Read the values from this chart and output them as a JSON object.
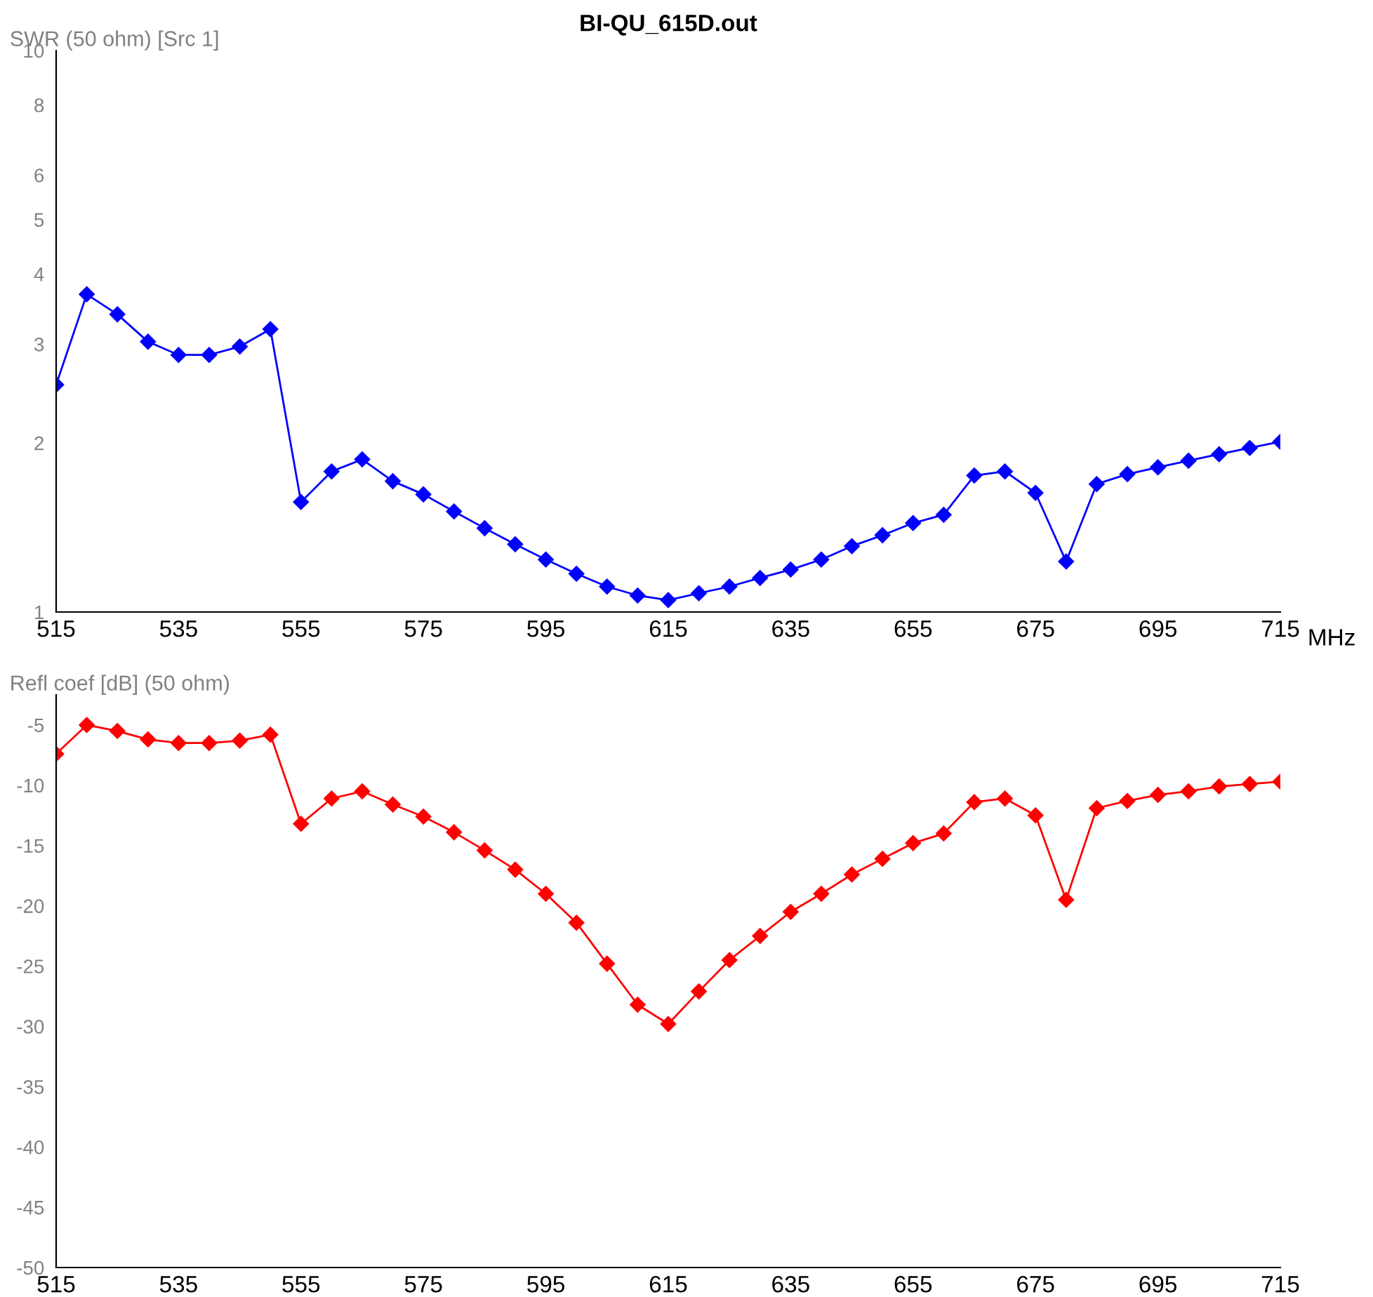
{
  "chart_data": [
    {
      "type": "line",
      "title": "BI-QU_615D.out",
      "ylabel": "SWR (50 ohm) [Src 1]",
      "xlabel": "MHz",
      "log": "y",
      "x": [
        515,
        520,
        525,
        530,
        535,
        540,
        545,
        550,
        555,
        560,
        565,
        570,
        575,
        580,
        585,
        590,
        595,
        600,
        605,
        610,
        615,
        620,
        625,
        630,
        635,
        640,
        645,
        650,
        655,
        660,
        665,
        670,
        675,
        680,
        685,
        690,
        695,
        700,
        705,
        710,
        715
      ],
      "series": [
        {
          "color": "#0000ff",
          "values": [
            2.54,
            3.68,
            3.39,
            3.03,
            2.87,
            2.87,
            2.97,
            3.19,
            1.57,
            1.78,
            1.87,
            1.71,
            1.62,
            1.51,
            1.41,
            1.32,
            1.24,
            1.17,
            1.11,
            1.07,
            1.05,
            1.08,
            1.11,
            1.15,
            1.19,
            1.24,
            1.31,
            1.37,
            1.44,
            1.49,
            1.75,
            1.78,
            1.63,
            1.23,
            1.69,
            1.76,
            1.81,
            1.86,
            1.91,
            1.96,
            2.01
          ]
        }
      ],
      "xlim": [
        515,
        715
      ],
      "xticks": [
        515,
        535,
        555,
        575,
        595,
        615,
        635,
        655,
        675,
        695,
        715
      ],
      "ylim": [
        1,
        10
      ],
      "yticks": [
        1,
        2,
        3,
        4,
        5,
        6,
        8,
        10
      ],
      "marker": "diamond",
      "line_style": "solid",
      "grid": false,
      "legend": false
    },
    {
      "type": "line",
      "ylabel": "Refl coef [dB] (50 ohm)",
      "x": [
        515,
        520,
        525,
        530,
        535,
        540,
        545,
        550,
        555,
        560,
        565,
        570,
        575,
        580,
        585,
        590,
        595,
        600,
        605,
        610,
        615,
        620,
        625,
        630,
        635,
        640,
        645,
        650,
        655,
        660,
        665,
        670,
        675,
        680,
        685,
        690,
        695,
        700,
        705,
        710,
        715
      ],
      "series": [
        {
          "color": "#ff0000",
          "values": [
            -7.4,
            -5.0,
            -5.5,
            -6.2,
            -6.5,
            -6.5,
            -6.3,
            -5.8,
            -13.2,
            -11.1,
            -10.5,
            -11.6,
            -12.6,
            -13.9,
            -15.4,
            -17.0,
            -19.0,
            -21.4,
            -24.8,
            -28.2,
            -29.8,
            -27.1,
            -24.5,
            -22.5,
            -20.5,
            -19.0,
            -17.4,
            -16.1,
            -14.8,
            -14.0,
            -11.4,
            -11.1,
            -12.5,
            -19.5,
            -11.9,
            -11.3,
            -10.8,
            -10.5,
            -10.1,
            -9.9,
            -9.7
          ]
        }
      ],
      "xlim": [
        515,
        715
      ],
      "xticks": [
        515,
        535,
        555,
        575,
        595,
        615,
        635,
        655,
        675,
        695,
        715
      ],
      "ylim": [
        -50,
        -2.5
      ],
      "yticks": [
        -5,
        -10,
        -15,
        -20,
        -25,
        -30,
        -35,
        -40,
        -45,
        -50
      ],
      "marker": "diamond",
      "line_style": "solid",
      "grid": false,
      "legend": false
    }
  ]
}
